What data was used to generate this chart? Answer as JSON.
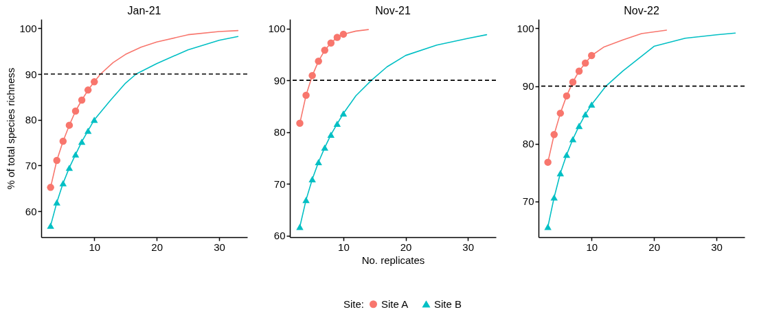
{
  "chart_data": [
    {
      "type": "line",
      "title": "Jan-21",
      "ylabel": "% of total species richness",
      "xlim": [
        1.5,
        34.5
      ],
      "xticks": [
        10,
        20,
        30
      ],
      "ylim": [
        54.3,
        102
      ],
      "yticks": [
        60,
        70,
        80,
        90,
        100
      ],
      "grid": false,
      "legend": "bottom",
      "ref_lines": [
        {
          "axis": "y",
          "value": 90,
          "line_style": "dashed",
          "color": "#000000"
        }
      ],
      "series": [
        {
          "name": "Site A",
          "color": "#f8766d",
          "marker": "circle",
          "x": [
            3,
            4,
            5,
            6,
            7,
            8,
            9,
            10
          ],
          "values": [
            65.2,
            71.1,
            75.3,
            78.8,
            81.9,
            84.3,
            86.5,
            88.3
          ]
        },
        {
          "color": "#f8766d",
          "marker": "none",
          "x": [
            10,
            11,
            13,
            15,
            17.5,
            20,
            25,
            30,
            33
          ],
          "values": [
            88.3,
            90,
            92.5,
            94.3,
            95.9,
            97.0,
            98.6,
            99.3,
            99.5
          ]
        },
        {
          "name": "Site B",
          "color": "#00bfc4",
          "marker": "triangle",
          "x": [
            3,
            4,
            5,
            6,
            7,
            8,
            9,
            10
          ],
          "values": [
            56.8,
            61.9,
            66.1,
            69.5,
            72.4,
            75.2,
            77.6,
            80.0
          ]
        },
        {
          "color": "#00bfc4",
          "marker": "none",
          "x": [
            10,
            12.5,
            15,
            16.7,
            20,
            25,
            30,
            33
          ],
          "values": [
            80.0,
            84.1,
            88.0,
            90,
            92.3,
            95.3,
            97.4,
            98.2
          ]
        }
      ]
    },
    {
      "type": "line",
      "title": "Nov-21",
      "xlabel": "No. replicates",
      "xlim": [
        1.4,
        34.5
      ],
      "xticks": [
        10,
        20,
        30
      ],
      "ylim": [
        59.7,
        101.8
      ],
      "yticks": [
        60,
        70,
        80,
        90,
        100
      ],
      "grid": false,
      "legend": "bottom",
      "legend_title": "Site:",
      "ref_lines": [
        {
          "axis": "y",
          "value": 90,
          "line_style": "dashed",
          "color": "#000000"
        }
      ],
      "series": [
        {
          "name": "Site A",
          "color": "#f8766d",
          "marker": "circle",
          "x": [
            3,
            4,
            5,
            6,
            7,
            8,
            9,
            10
          ],
          "values": [
            81.7,
            87.1,
            90.9,
            93.7,
            95.8,
            97.2,
            98.3,
            98.9
          ]
        },
        {
          "color": "#f8766d",
          "marker": "none",
          "x": [
            10,
            12,
            14
          ],
          "values": [
            98.9,
            99.5,
            99.8
          ]
        },
        {
          "name": "Site B",
          "color": "#00bfc4",
          "marker": "triangle",
          "x": [
            3,
            4,
            5,
            6,
            7,
            8,
            9,
            10
          ],
          "values": [
            61.7,
            66.9,
            70.9,
            74.2,
            77.0,
            79.5,
            81.6,
            83.6
          ]
        },
        {
          "color": "#00bfc4",
          "marker": "none",
          "x": [
            10,
            12,
            14.5,
            17,
            20,
            25,
            30,
            33
          ],
          "values": [
            83.6,
            87.0,
            90,
            92.6,
            94.8,
            96.8,
            98.1,
            98.8
          ]
        }
      ]
    },
    {
      "type": "line",
      "title": "Nov-22",
      "xlim": [
        1.5,
        34.5
      ],
      "xticks": [
        10,
        20,
        30
      ],
      "ylim": [
        63.8,
        101.6
      ],
      "yticks": [
        70,
        80,
        90,
        100
      ],
      "grid": false,
      "legend": "bottom",
      "ref_lines": [
        {
          "axis": "y",
          "value": 90,
          "line_style": "dashed",
          "color": "#000000"
        }
      ],
      "series": [
        {
          "name": "Site A",
          "color": "#f8766d",
          "marker": "circle",
          "x": [
            3,
            4,
            5,
            6,
            7,
            8,
            9,
            10
          ],
          "values": [
            76.8,
            81.6,
            85.3,
            88.3,
            90.7,
            92.6,
            94.0,
            95.3
          ]
        },
        {
          "color": "#f8766d",
          "marker": "none",
          "x": [
            10,
            12,
            15,
            18,
            22
          ],
          "values": [
            95.3,
            96.8,
            98.0,
            99.1,
            99.7
          ]
        },
        {
          "name": "Site B",
          "color": "#00bfc4",
          "marker": "triangle",
          "x": [
            3,
            4,
            5,
            6,
            7,
            8,
            9,
            10
          ],
          "values": [
            65.6,
            70.7,
            74.9,
            78.1,
            80.8,
            83.1,
            85.1,
            86.8
          ]
        },
        {
          "color": "#00bfc4",
          "marker": "none",
          "x": [
            10,
            12.3,
            15,
            20,
            25,
            30,
            33
          ],
          "values": [
            86.8,
            90,
            92.6,
            96.9,
            98.3,
            98.9,
            99.2
          ]
        }
      ]
    }
  ]
}
